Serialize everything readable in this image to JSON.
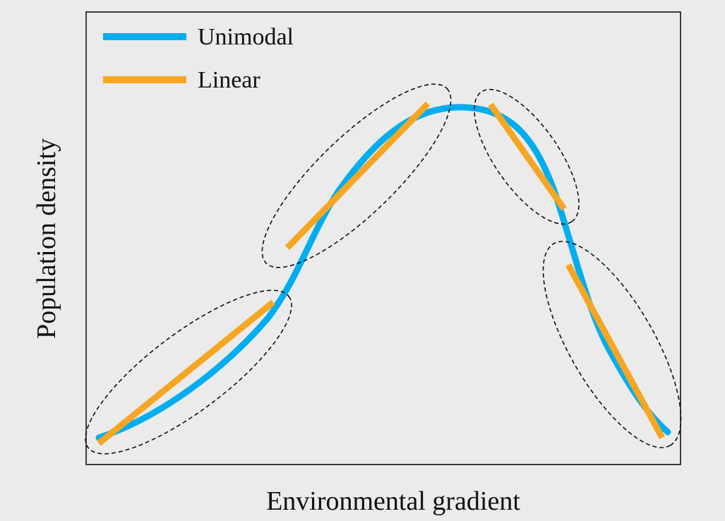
{
  "figure": {
    "xlabel": "Environmental gradient",
    "ylabel": "Population density"
  },
  "legend": {
    "items": [
      {
        "label": "Unimodal",
        "color": "#00aeef"
      },
      {
        "label": "Linear",
        "color": "#f5a623"
      }
    ]
  },
  "colors": {
    "background": "#ebebeb",
    "frame": "#111111",
    "unimodal": "#00aeef",
    "linear": "#f5a623",
    "ellipse": "#111111"
  }
}
